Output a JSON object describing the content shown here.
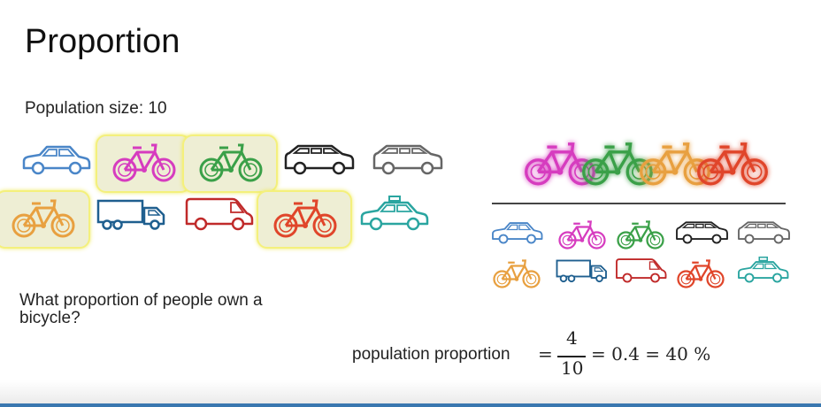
{
  "title": "Proportion",
  "population_label": "Population size: 10",
  "question": "What proportion of people own a bicycle?",
  "formula": {
    "label": "population proportion",
    "eq1": "=",
    "numerator": "4",
    "denominator": "10",
    "rest": "= 0.4 = 40 %"
  },
  "population": [
    {
      "type": "car-icon",
      "color": "#4a86c8"
    },
    {
      "type": "bicycle-icon",
      "color": "#d63cbf",
      "highlighted": true
    },
    {
      "type": "bicycle-icon",
      "color": "#3aa048",
      "highlighted": true
    },
    {
      "type": "wagon-icon",
      "color": "#222222"
    },
    {
      "type": "wagon-icon",
      "color": "#666666"
    },
    {
      "type": "bicycle-icon",
      "color": "#e8a040",
      "highlighted": true
    },
    {
      "type": "truck-icon",
      "color": "#1f5f8f"
    },
    {
      "type": "van-icon",
      "color": "#c02a2a"
    },
    {
      "type": "bicycle-icon",
      "color": "#e0452a",
      "highlighted": true
    },
    {
      "type": "taxi-icon",
      "color": "#2aa5a0"
    }
  ],
  "numerator_icons": [
    {
      "type": "bicycle-icon",
      "color": "#d63cbf"
    },
    {
      "type": "bicycle-icon",
      "color": "#3aa048"
    },
    {
      "type": "bicycle-icon",
      "color": "#e8a040"
    },
    {
      "type": "bicycle-icon",
      "color": "#e0452a"
    }
  ]
}
